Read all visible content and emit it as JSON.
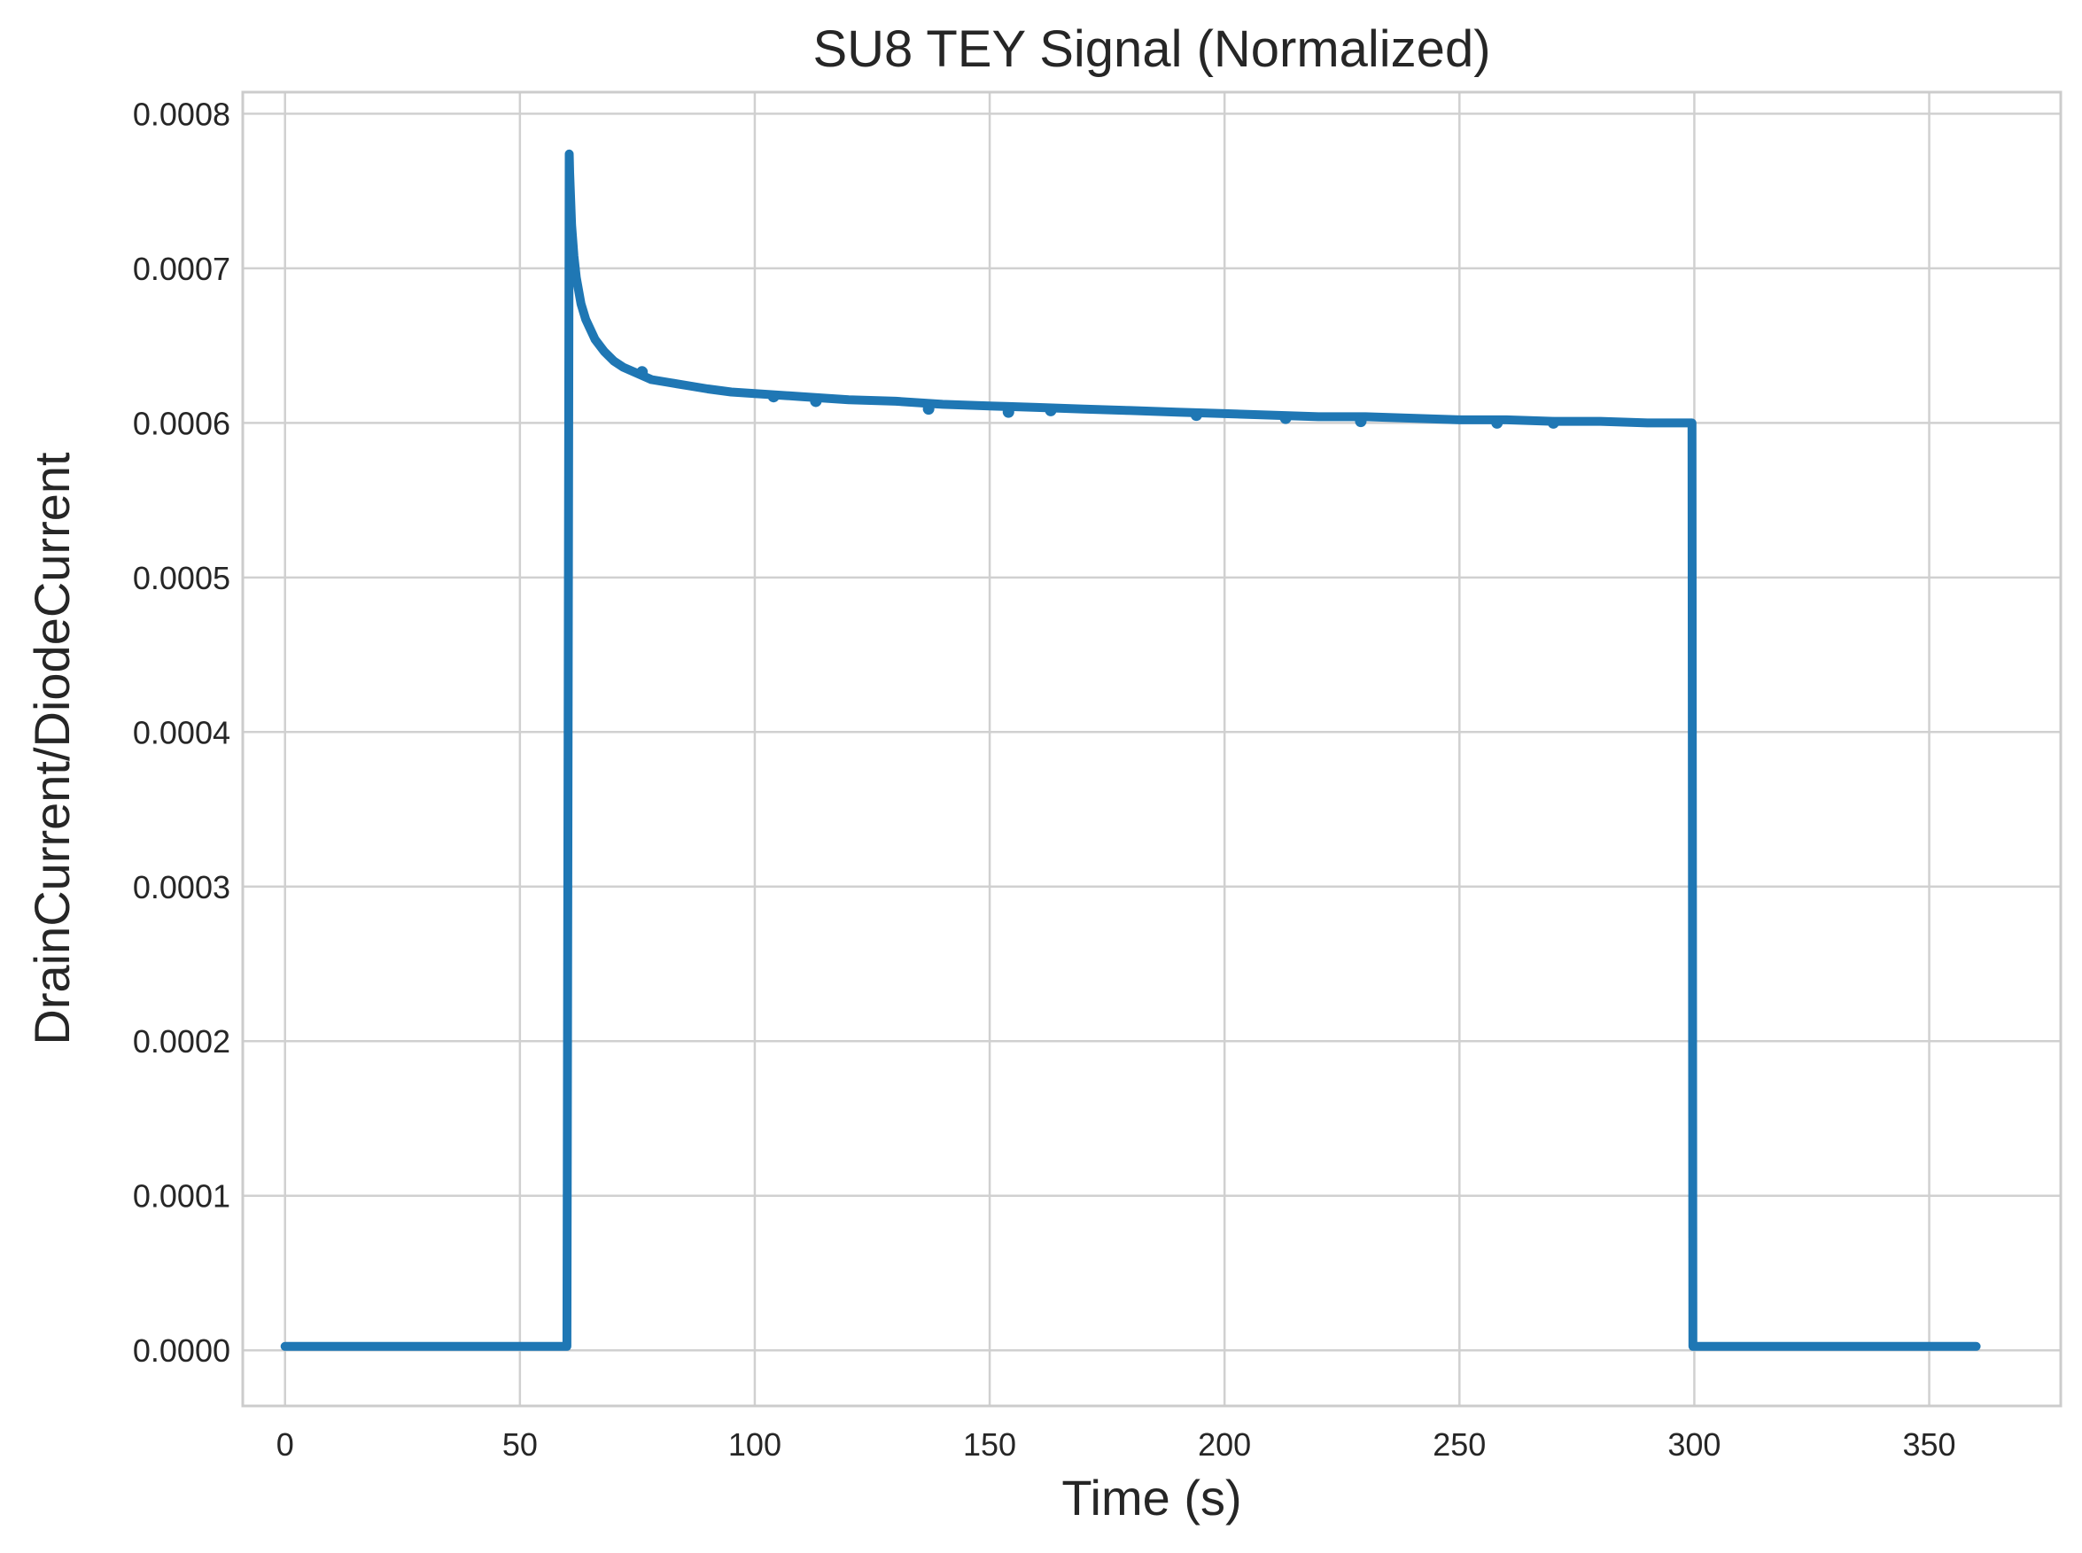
{
  "chart_data": {
    "type": "line",
    "title": "SU8 TEY Signal (Normalized)",
    "xlabel": "Time (s)",
    "ylabel": "DrainCurrent/DiodeCurrent",
    "xlim": [
      -9,
      378
    ],
    "ylim": [
      -3.6e-05,
      0.000814
    ],
    "x_ticks": [
      0,
      50,
      100,
      150,
      200,
      250,
      300,
      350
    ],
    "x_tick_labels": [
      "0",
      "50",
      "100",
      "150",
      "200",
      "250",
      "300",
      "350"
    ],
    "y_ticks": [
      0.0,
      0.0001,
      0.0002,
      0.0003,
      0.0004,
      0.0005,
      0.0006,
      0.0007,
      0.0008
    ],
    "y_tick_labels": [
      "0.0000",
      "0.0001",
      "0.0002",
      "0.0003",
      "0.0004",
      "0.0005",
      "0.0006",
      "0.0007",
      "0.0008"
    ],
    "grid": true,
    "legend": "none",
    "colors": {
      "line": "#1f77b4",
      "grid": "#d0d0d0",
      "frame": "#cccccc",
      "text": "#262626"
    },
    "series": [
      {
        "x": [
          0,
          60,
          60.5,
          60.6,
          60.8,
          61,
          61.5,
          62,
          63,
          64,
          66,
          68,
          70,
          72,
          75,
          78,
          82,
          86,
          90,
          95,
          100,
          110,
          120,
          130,
          140,
          150,
          160,
          170,
          180,
          190,
          200,
          210,
          220,
          230,
          240,
          250,
          260,
          270,
          280,
          290,
          299.5,
          299.7,
          300,
          360
        ],
        "y": [
          2.5e-06,
          2.5e-06,
          0.000774,
          0.000762,
          0.000745,
          0.000728,
          0.000708,
          0.000694,
          0.000677,
          0.000667,
          0.000654,
          0.000646,
          0.00064,
          0.000636,
          0.000632,
          0.000628,
          0.000626,
          0.000624,
          0.000622,
          0.00062,
          0.000619,
          0.000617,
          0.000615,
          0.000614,
          0.000612,
          0.000611,
          0.00061,
          0.000609,
          0.000608,
          0.000607,
          0.000606,
          0.000605,
          0.000604,
          0.000604,
          0.000603,
          0.000602,
          0.000602,
          0.000601,
          0.000601,
          0.0006,
          0.0006,
          2.5e-06,
          2.5e-06,
          2.5e-06
        ]
      }
    ],
    "outliers": [
      {
        "x": 76,
        "y": 0.000633
      },
      {
        "x": 104,
        "y": 0.000617
      },
      {
        "x": 113,
        "y": 0.000614
      },
      {
        "x": 137,
        "y": 0.000609
      },
      {
        "x": 154,
        "y": 0.000607
      },
      {
        "x": 163,
        "y": 0.000608
      },
      {
        "x": 194,
        "y": 0.000605
      },
      {
        "x": 213,
        "y": 0.000603
      },
      {
        "x": 229,
        "y": 0.000601
      },
      {
        "x": 258,
        "y": 0.0006
      },
      {
        "x": 270,
        "y": 0.0006
      }
    ]
  }
}
